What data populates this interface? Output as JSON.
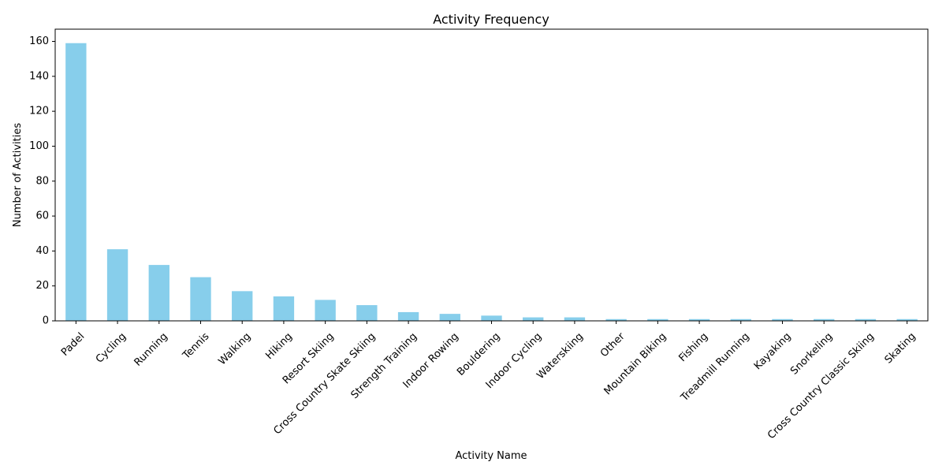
{
  "chart_data": {
    "type": "bar",
    "title": "Activity Frequency",
    "xlabel": "Activity Name",
    "ylabel": "Number of Activities",
    "categories": [
      "Padel",
      "Cycling",
      "Running",
      "Tennis",
      "Walking",
      "Hiking",
      "Resort Skiing",
      "Cross Country Skate Skiing",
      "Strength Training",
      "Indoor Rowing",
      "Bouldering",
      "Indoor Cycling",
      "Waterskiing",
      "Other",
      "Mountain Biking",
      "Fishing",
      "Treadmill Running",
      "Kayaking",
      "Snorkeling",
      "Cross Country Classic Skiing",
      "Skating"
    ],
    "values": [
      159,
      41,
      32,
      25,
      17,
      14,
      12,
      9,
      5,
      4,
      3,
      2,
      2,
      1,
      1,
      1,
      1,
      1,
      1,
      1,
      1
    ],
    "ylim": [
      0,
      167
    ],
    "yticks": [
      0,
      20,
      40,
      60,
      80,
      100,
      120,
      140,
      160
    ],
    "bar_color": "#87ceeb",
    "xtick_rotation": 45,
    "grid": false,
    "legend": "none"
  }
}
